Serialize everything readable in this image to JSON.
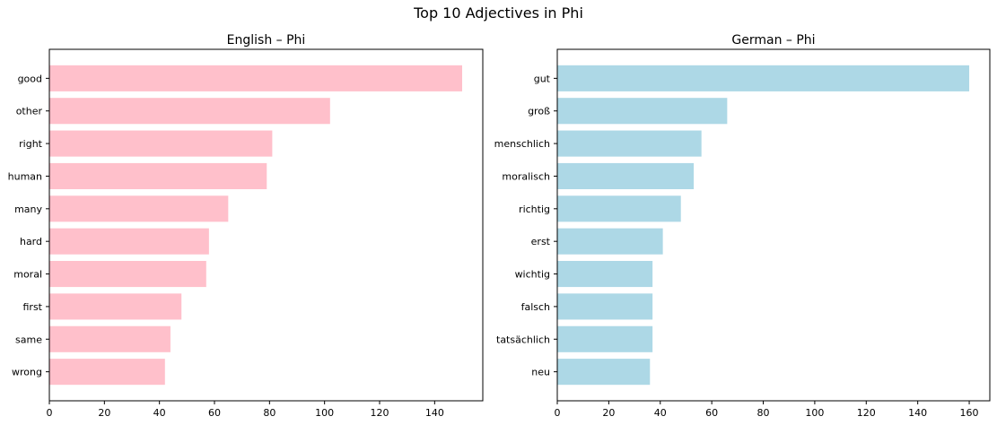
{
  "figure": {
    "title": "Top 10 Adjectives in Phi"
  },
  "chart_data": [
    {
      "type": "bar",
      "orientation": "horizontal",
      "title": "English – Phi",
      "xlabel": "",
      "ylabel": "",
      "categories": [
        "good",
        "other",
        "right",
        "human",
        "many",
        "hard",
        "moral",
        "first",
        "same",
        "wrong"
      ],
      "values": [
        150,
        102,
        81,
        79,
        65,
        58,
        57,
        48,
        44,
        42
      ],
      "xlim": [
        0,
        157.5
      ],
      "xticks": [
        0,
        20,
        40,
        60,
        80,
        100,
        120,
        140
      ],
      "color": "#ffc0cb",
      "grid": false
    },
    {
      "type": "bar",
      "orientation": "horizontal",
      "title": "German – Phi",
      "xlabel": "",
      "ylabel": "",
      "categories": [
        "gut",
        "groß",
        "menschlich",
        "moralisch",
        "richtig",
        "erst",
        "wichtig",
        "falsch",
        "tatsächlich",
        "neu"
      ],
      "values": [
        160,
        66,
        56,
        53,
        48,
        41,
        37,
        37,
        37,
        36
      ],
      "xlim": [
        0,
        168
      ],
      "xticks": [
        0,
        20,
        40,
        60,
        80,
        100,
        120,
        140,
        160
      ],
      "color": "#add8e6",
      "grid": false
    }
  ]
}
